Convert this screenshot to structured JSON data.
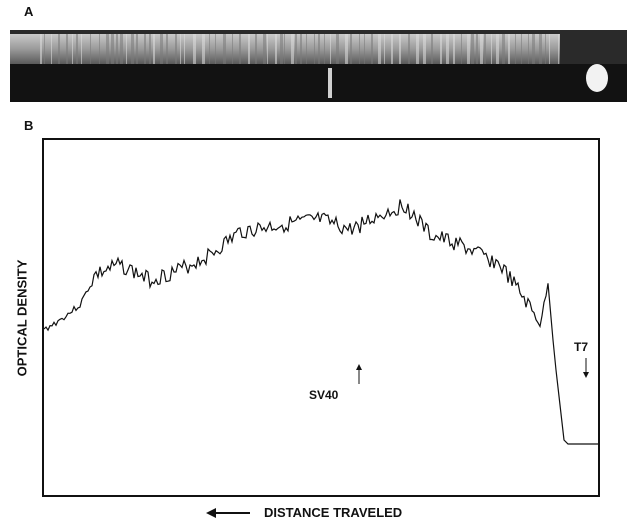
{
  "panels": {
    "a": "A",
    "b": "B"
  },
  "axes": {
    "ylabel": "OPTICAL DENSITY",
    "xlabel": "DISTANCE TRAVELED"
  },
  "markers": {
    "sv40": "SV40",
    "t7": "T7"
  },
  "icons": {
    "direction_arrow": "left-arrow-icon",
    "marker_arrow": "up-arrow-icon"
  },
  "colors": {
    "ink": "#111111",
    "gel_dark": "#1c1c1c",
    "gel_light": "#b8b8b8"
  }
}
